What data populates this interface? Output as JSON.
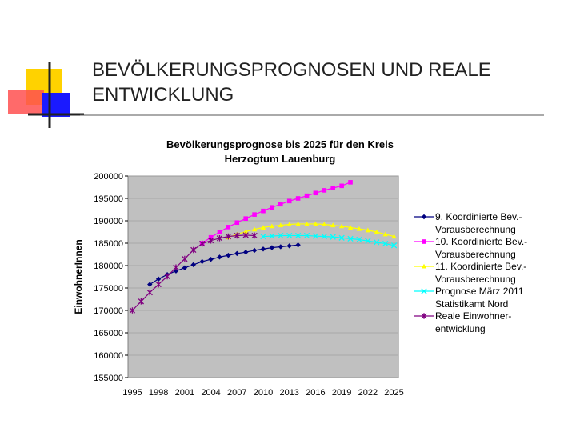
{
  "slide_title": "BEVÖLKERUNGSPROGNOSEN UND REALE ENTWICKLUNG",
  "chart_data": {
    "type": "line",
    "title": "Bevölkerungsprognose bis 2025 für den Kreis Herzogtum Lauenburg",
    "y_label": "EinwohnerInnen",
    "categories": [
      "1995",
      null,
      null,
      "1998",
      null,
      null,
      "2001",
      null,
      null,
      "2004",
      null,
      null,
      "2007",
      null,
      null,
      "2010",
      null,
      null,
      "2013",
      null,
      null,
      "2016",
      null,
      null,
      "2019",
      null,
      null,
      "2022",
      null,
      null,
      "2025"
    ],
    "ylim": [
      155000,
      200000
    ],
    "yticks": [
      155000,
      160000,
      165000,
      170000,
      175000,
      180000,
      185000,
      190000,
      195000,
      200000
    ],
    "grid": true,
    "series": [
      {
        "name": "9. Koordinierte Bev.-Vorausberechnung",
        "color": "#000080",
        "marker": "diamond",
        "values": [
          null,
          null,
          175800,
          177000,
          178000,
          178800,
          179500,
          180200,
          180900,
          181400,
          181900,
          182300,
          182700,
          183000,
          183400,
          183700,
          184000,
          184200,
          184400,
          184600,
          null,
          null,
          null,
          null,
          null,
          null,
          null,
          null,
          null,
          null,
          null
        ]
      },
      {
        "name": "10. Koordinierte Bev.-Vorausberechnung",
        "color": "#ff00ff",
        "marker": "square",
        "values": [
          null,
          null,
          null,
          null,
          null,
          null,
          null,
          null,
          185000,
          186300,
          187500,
          188600,
          189600,
          190500,
          191400,
          192200,
          193000,
          193700,
          194400,
          195000,
          195600,
          196200,
          196800,
          197300,
          197800,
          198600,
          null,
          null,
          null,
          null,
          null
        ]
      },
      {
        "name": "11. Koordinierte Bev.-Vorausberechnung",
        "color": "#ffff00",
        "marker": "triangle",
        "values": [
          null,
          null,
          null,
          null,
          null,
          null,
          null,
          null,
          null,
          null,
          null,
          186300,
          187000,
          187600,
          188100,
          188500,
          188800,
          189000,
          189200,
          189300,
          189300,
          189300,
          189200,
          189000,
          188800,
          188500,
          188200,
          187900,
          187500,
          187000,
          186500
        ]
      },
      {
        "name": "Prognose März 2011 Statistikamt Nord",
        "color": "#00ffff",
        "marker": "x",
        "values": [
          null,
          null,
          null,
          null,
          null,
          null,
          null,
          null,
          null,
          null,
          null,
          null,
          null,
          null,
          null,
          186500,
          186600,
          186700,
          186700,
          186700,
          186700,
          186600,
          186500,
          186400,
          186200,
          186000,
          185800,
          185500,
          185200,
          184900,
          184500
        ]
      },
      {
        "name": "Reale Einwohner-entwicklung",
        "color": "#800080",
        "marker": "star",
        "values": [
          170000,
          172000,
          174000,
          175800,
          177600,
          179600,
          181500,
          183500,
          184900,
          185600,
          186100,
          186500,
          186700,
          186800,
          186700,
          null,
          null,
          null,
          null,
          null,
          null,
          null,
          null,
          null,
          null,
          null,
          null,
          null,
          null,
          null,
          null
        ]
      }
    ]
  }
}
